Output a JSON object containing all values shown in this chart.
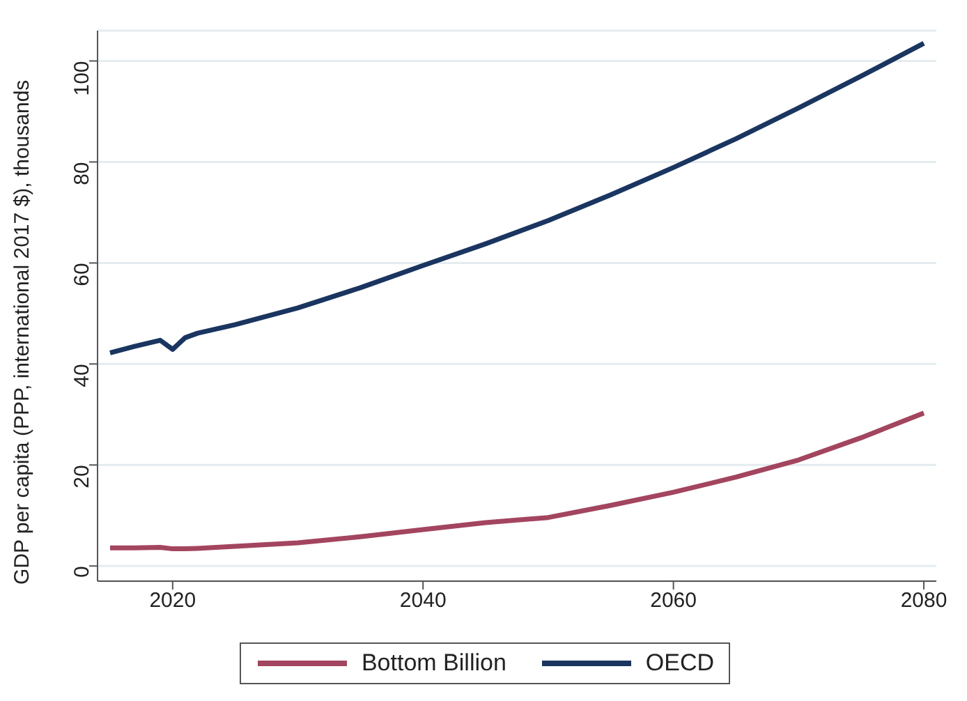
{
  "chart_data": {
    "type": "line",
    "ylabel": "GDP per capita (PPP, international 2017 $), thousands",
    "x": [
      2015,
      2017,
      2019,
      2020,
      2021,
      2022,
      2025,
      2030,
      2035,
      2040,
      2045,
      2050,
      2055,
      2060,
      2065,
      2070,
      2075,
      2080
    ],
    "series": [
      {
        "name": "Bottom Billion",
        "color": "#a3455f",
        "values": [
          3.6,
          3.6,
          3.7,
          3.4,
          3.4,
          3.5,
          3.9,
          4.6,
          5.8,
          7.2,
          8.6,
          9.6,
          12,
          14.6,
          17.6,
          21,
          25.4,
          30.3
        ]
      },
      {
        "name": "OECD",
        "color": "#1a3560",
        "values": [
          42.2,
          43.5,
          44.7,
          42.9,
          45.2,
          46.1,
          47.8,
          51.1,
          55.1,
          59.5,
          63.8,
          68.4,
          73.5,
          78.9,
          84.6,
          90.7,
          97,
          103.5
        ]
      }
    ],
    "xlim": [
      2014,
      2081
    ],
    "xticks": [
      2020,
      2040,
      2060,
      2080
    ],
    "ylim": [
      -3,
      106
    ],
    "yticks": [
      0,
      20,
      40,
      60,
      80,
      100
    ],
    "grid": "y",
    "legend": "bottom",
    "marker": "none",
    "line_style": "solid"
  }
}
